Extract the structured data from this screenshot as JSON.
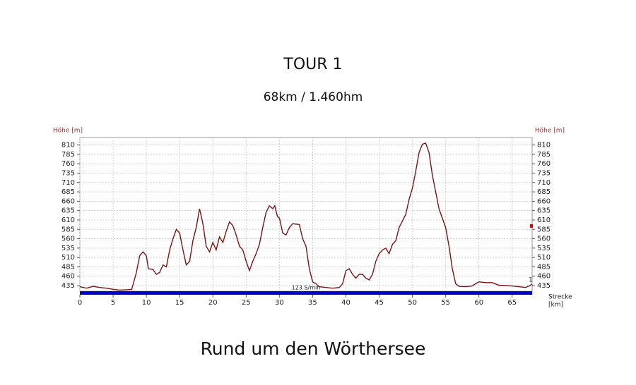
{
  "chart_data": {
    "type": "line",
    "title": "TOUR 1",
    "subtitle": "68km / 1.460hm",
    "caption": "Rund um den Wörthersee",
    "y_label": "Höhe [m]",
    "y2_label": "Höhe [m]",
    "x_label_line1": "Strecke",
    "x_label_line2": "[km]",
    "annotation": "123 S/min",
    "end_label": "1",
    "color": "#7a1414",
    "grid": true,
    "xlim": [
      0,
      68
    ],
    "ylim": [
      420,
      830
    ],
    "xticks": [
      0,
      5,
      10,
      15,
      20,
      25,
      30,
      35,
      40,
      45,
      50,
      55,
      60,
      65
    ],
    "yticks": [
      435,
      460,
      485,
      510,
      535,
      560,
      585,
      610,
      635,
      660,
      685,
      710,
      735,
      760,
      785,
      810
    ],
    "x": [
      0,
      1,
      2,
      3,
      4,
      5,
      6,
      7,
      7.8,
      8.5,
      9,
      9.5,
      10,
      10.3,
      11,
      11.5,
      12,
      12.5,
      13,
      13.5,
      14,
      14.5,
      15,
      15.5,
      16,
      16.5,
      17,
      17.5,
      18,
      18.5,
      19,
      19.5,
      20,
      20.5,
      21,
      21.5,
      22,
      22.5,
      23,
      23.5,
      24,
      24.5,
      25,
      25.5,
      26,
      26.5,
      27,
      27.5,
      28,
      28.5,
      29,
      29.3,
      29.7,
      30,
      30.5,
      31,
      31.5,
      32,
      33,
      33.5,
      34,
      34.5,
      35,
      35.5,
      36,
      37,
      38,
      39,
      39.5,
      40,
      40.5,
      41,
      41.5,
      42,
      42.5,
      43,
      43.5,
      44,
      44.5,
      45,
      45.5,
      46,
      46.5,
      47,
      47.5,
      48,
      49,
      49.5,
      50,
      50.5,
      51,
      51.5,
      52,
      52.5,
      53,
      53.5,
      54,
      55,
      55.5,
      56,
      56.5,
      57,
      58,
      59,
      59.5,
      60,
      61,
      62,
      63,
      64,
      65,
      66,
      67,
      67.7,
      68
    ],
    "values": [
      432,
      428,
      433,
      430,
      428,
      425,
      423,
      424,
      425,
      470,
      515,
      525,
      515,
      480,
      478,
      465,
      470,
      490,
      485,
      530,
      560,
      585,
      575,
      530,
      490,
      500,
      555,
      590,
      640,
      600,
      540,
      525,
      550,
      530,
      565,
      550,
      580,
      605,
      595,
      570,
      540,
      530,
      500,
      475,
      500,
      520,
      545,
      590,
      630,
      648,
      640,
      648,
      620,
      615,
      575,
      570,
      590,
      600,
      598,
      560,
      540,
      480,
      445,
      440,
      432,
      430,
      428,
      430,
      440,
      475,
      480,
      465,
      455,
      465,
      465,
      455,
      450,
      465,
      500,
      520,
      530,
      535,
      520,
      545,
      555,
      590,
      625,
      665,
      695,
      740,
      790,
      812,
      815,
      790,
      730,
      685,
      640,
      590,
      540,
      480,
      440,
      433,
      432,
      434,
      440,
      445,
      443,
      443,
      436,
      435,
      434,
      432,
      430,
      435,
      440
    ]
  }
}
